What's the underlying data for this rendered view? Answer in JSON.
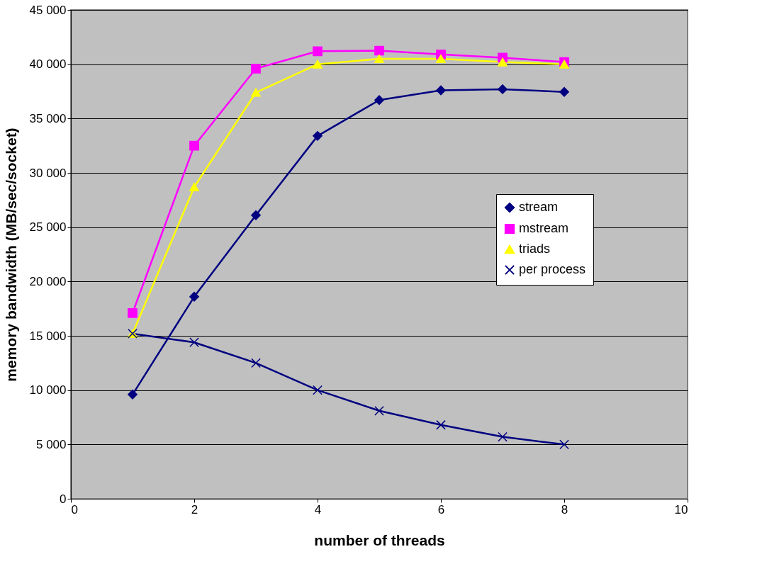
{
  "chart_data": {
    "type": "line",
    "xlabel": "number of threads",
    "ylabel": "memory bandwidth (MB/sec/socket)",
    "x": [
      1,
      2,
      3,
      4,
      5,
      6,
      7,
      8
    ],
    "series": [
      {
        "name": "stream",
        "color": "#000080",
        "marker": "diamond",
        "values": [
          9600,
          18600,
          26100,
          33400,
          36700,
          37600,
          37700,
          37450
        ]
      },
      {
        "name": "mstream",
        "color": "#ff00ff",
        "marker": "square",
        "values": [
          17100,
          32500,
          39600,
          41200,
          41250,
          40900,
          40600,
          40200
        ]
      },
      {
        "name": "triads",
        "color": "#ffff00",
        "marker": "triangle",
        "values": [
          15200,
          28700,
          37400,
          40000,
          40500,
          40500,
          40200,
          40000
        ]
      },
      {
        "name": "per process",
        "color": "#000080",
        "marker": "cross",
        "values": [
          15200,
          14400,
          12500,
          10000,
          8100,
          6800,
          5700,
          5000
        ]
      }
    ],
    "xlim": [
      0,
      10
    ],
    "xticks": [
      0,
      2,
      4,
      6,
      8,
      10
    ],
    "ylim": [
      0,
      45000
    ],
    "yticks": [
      0,
      {
        "value": 5000,
        "label": "5 000"
      },
      {
        "value": 10000,
        "label": "10 000"
      },
      {
        "value": 15000,
        "label": "15 000"
      },
      {
        "value": 20000,
        "label": "20 000"
      },
      {
        "value": 25000,
        "label": "25 000"
      },
      {
        "value": 30000,
        "label": "30 000"
      },
      {
        "value": 35000,
        "label": "35 000"
      },
      {
        "value": 40000,
        "label": "40 000"
      },
      {
        "value": 45000,
        "label": "45 000"
      }
    ],
    "grid": "y",
    "legend": "right",
    "line_style": "solid"
  }
}
